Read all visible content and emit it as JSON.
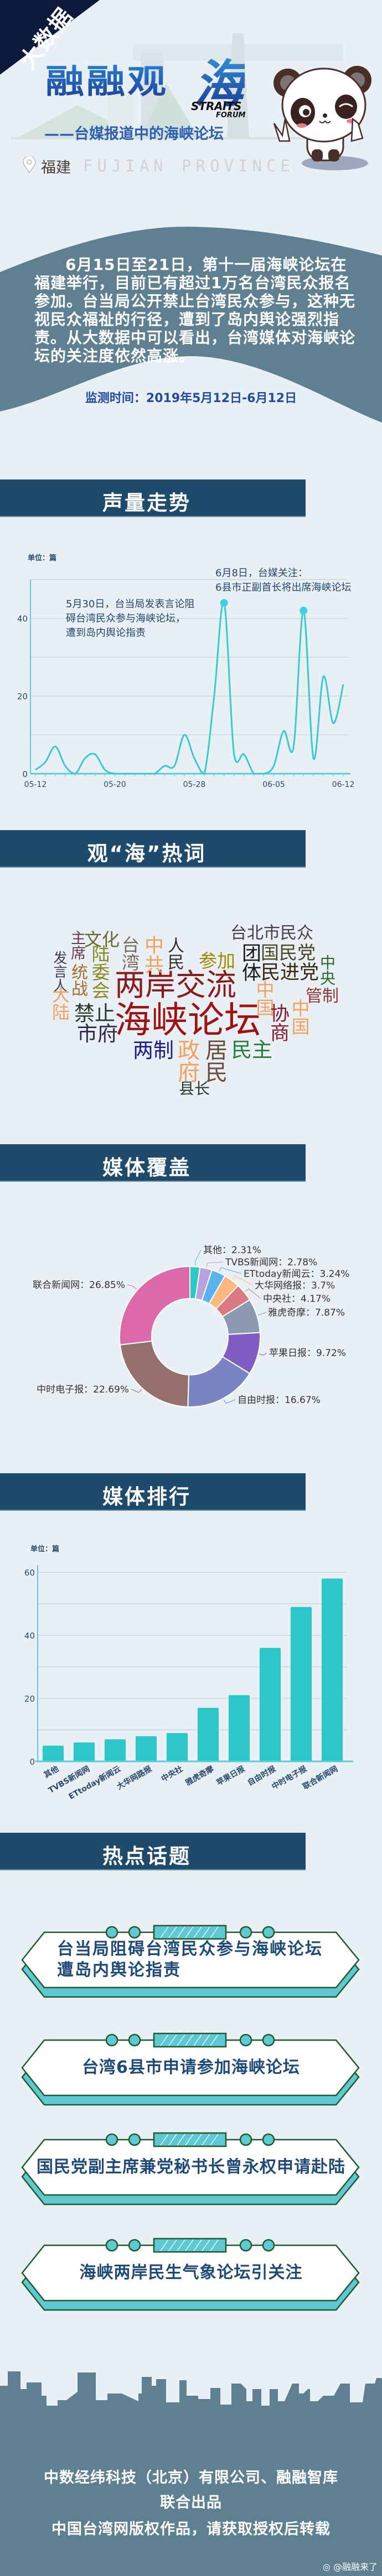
{
  "header": {
    "badge": "大数据",
    "title": "融融观",
    "title_char": "海",
    "logo_line1": "STRAITS",
    "logo_line2": "FORUM",
    "subtitle": "——台媒报道中的海峡论坛",
    "location_cn": "福建",
    "location_en": "FUJIAN PROVINCE"
  },
  "intro": {
    "paragraph": "6月15日至21日，第十一届海峡论坛在福建举行，目前已有超过1万名台湾民众报名参加。台当局公开禁止台湾民众参与，这种无视民众福祉的行径，遭到了岛内舆论强烈指责。从大数据中可以看出，台湾媒体对海峡论坛的关注度依然高涨。",
    "monitor_period": "监测时间：2019年5月12日-6月12日"
  },
  "sections": {
    "trend": "声量走势",
    "hotwords": "观“海”热词",
    "coverage": "媒体覆盖",
    "ranking": "媒体排行",
    "topics": "热点话题"
  },
  "chart_data": [
    {
      "type": "line",
      "unit_label": "单位：篇",
      "x": [
        "05-12",
        "05-13",
        "05-14",
        "05-15",
        "05-16",
        "05-17",
        "05-18",
        "05-19",
        "05-20",
        "05-21",
        "05-22",
        "05-23",
        "05-24",
        "05-25",
        "05-26",
        "05-27",
        "05-28",
        "05-29",
        "05-30",
        "05-31",
        "06-01",
        "06-02",
        "06-03",
        "06-04",
        "06-05",
        "06-06",
        "06-07",
        "06-08",
        "06-09",
        "06-10",
        "06-11",
        "06-12"
      ],
      "values": [
        1,
        3,
        7,
        2,
        0,
        4,
        5,
        1,
        0,
        0,
        0,
        0,
        0,
        2,
        2,
        10,
        4,
        0,
        20,
        44,
        5,
        5,
        0,
        0,
        2,
        11,
        7,
        42,
        4,
        25,
        13,
        23
      ],
      "xticks": [
        "05-12",
        "05-20",
        "05-28",
        "06-05",
        "06-12"
      ],
      "yticks": [
        0,
        20,
        40
      ],
      "ylim": [
        0,
        50
      ],
      "grid": true,
      "color": "#3cc8d0",
      "highlighted_points": [
        "05-31",
        "06-08"
      ],
      "annotations": [
        {
          "lines": [
            "5月30日，台当局发表言论阻",
            "碍台湾民众参与海峡论坛，",
            "遭到岛内舆论指责"
          ]
        },
        {
          "lines": [
            "6月8日，台媒关注：",
            "6县市正副首长将出席海峡论坛"
          ]
        }
      ]
    },
    {
      "type": "pie",
      "donut": true,
      "categories": [
        "其他",
        "TVBS新闻网",
        "ETtoday新闻云",
        "大华网络报",
        "中央社",
        "雅虎奇摩",
        "苹果日报",
        "自由时报",
        "中时电子报",
        "联合新闻网"
      ],
      "values": [
        2.31,
        2.78,
        3.24,
        3.7,
        4.17,
        7.87,
        9.72,
        16.67,
        22.69,
        26.85
      ],
      "labels": [
        "其他：2.31%",
        "TVBS新闻网：2.78%",
        "ETtoday新闻云：3.24%",
        "大华网络报：3.7%",
        "中央社：4.17%",
        "雅虎奇摩：7.87%",
        "苹果日报：9.72%",
        "自由时报：16.67%",
        "中时电子报：22.69%",
        "联合新闻网：26.85%"
      ],
      "colors": [
        "#2ec7c9",
        "#b6a2de",
        "#5ab1ef",
        "#ffb980",
        "#d87a80",
        "#8d98b3",
        "#7f5cc2",
        "#7885c2",
        "#95706d",
        "#dc69aa"
      ]
    },
    {
      "type": "bar",
      "unit_label": "单位：篇",
      "categories": [
        "其他",
        "TVBS新闻网",
        "ETtoday新闻云",
        "大华网路报",
        "中央社",
        "雅虎奇摩",
        "苹果日报",
        "自由时报",
        "中时电子报",
        "联合新闻网"
      ],
      "values": [
        5,
        6,
        7,
        8,
        9,
        17,
        21,
        36,
        49,
        58
      ],
      "yticks": [
        0,
        20,
        40,
        60
      ],
      "ylim": [
        0,
        60
      ],
      "grid": true,
      "color": "#2ec7c9"
    }
  ],
  "word_cloud": {
    "words": [
      {
        "text": "海峡论坛",
        "color": "#a01212"
      },
      {
        "text": "两岸交流",
        "color": "#8b1a1a"
      },
      {
        "text": "台北市民众",
        "color": "#4b3b47"
      },
      {
        "text": "团体",
        "color": "#1a1a1a"
      },
      {
        "text": "国民党",
        "color": "#4a4a20"
      },
      {
        "text": "民进党",
        "color": "#3a2a10"
      },
      {
        "text": "中央",
        "color": "#2a6a2a"
      },
      {
        "text": "管制",
        "color": "#8b3a3a"
      },
      {
        "text": "中国",
        "color": "#f5a05a"
      },
      {
        "text": "协商",
        "color": "#8b1a2a"
      },
      {
        "text": "中国",
        "color": "#f5a05a"
      },
      {
        "text": "参加",
        "color": "#a08a00"
      },
      {
        "text": "人民",
        "color": "#3a2a2a"
      },
      {
        "text": "中共",
        "color": "#f5a05a"
      },
      {
        "text": "台湾",
        "color": "#7a6a5a"
      },
      {
        "text": "文化",
        "color": "#6a6a30"
      },
      {
        "text": "主席",
        "color": "#6a3a4a"
      },
      {
        "text": "陆委会",
        "color": "#8a8a20"
      },
      {
        "text": "统战",
        "color": "#a0702a"
      },
      {
        "text": "发言人",
        "color": "#3a3a4a"
      },
      {
        "text": "大陆",
        "color": "#f5a05a"
      },
      {
        "text": "禁止",
        "color": "#2a3a2a"
      },
      {
        "text": "市府",
        "color": "#2a2a4a"
      },
      {
        "text": "两制",
        "color": "#1a1a8a"
      },
      {
        "text": "政府",
        "color": "#f5a05a"
      },
      {
        "text": "居民",
        "color": "#6a4a3a"
      },
      {
        "text": "民主",
        "color": "#2a7a3a"
      },
      {
        "text": "县长",
        "color": "#2a3a2a"
      }
    ]
  },
  "topics": [
    {
      "text": "台当局阻碍台湾民众参与海峡论坛遭岛内舆论指责"
    },
    {
      "text": "台湾6县市申请参加海峡论坛"
    },
    {
      "text": "国民党副主席兼党秘书长曾永权申请赴陆"
    },
    {
      "text": "海峡两岸民生气象论坛引关注"
    }
  ],
  "footer": {
    "line1": "中数经纬科技（北京）有限公司、融融智库",
    "line2": "联合出品",
    "line3": "中国台湾网版权作品，请获取授权后转载"
  },
  "watermark": "@融融来了"
}
